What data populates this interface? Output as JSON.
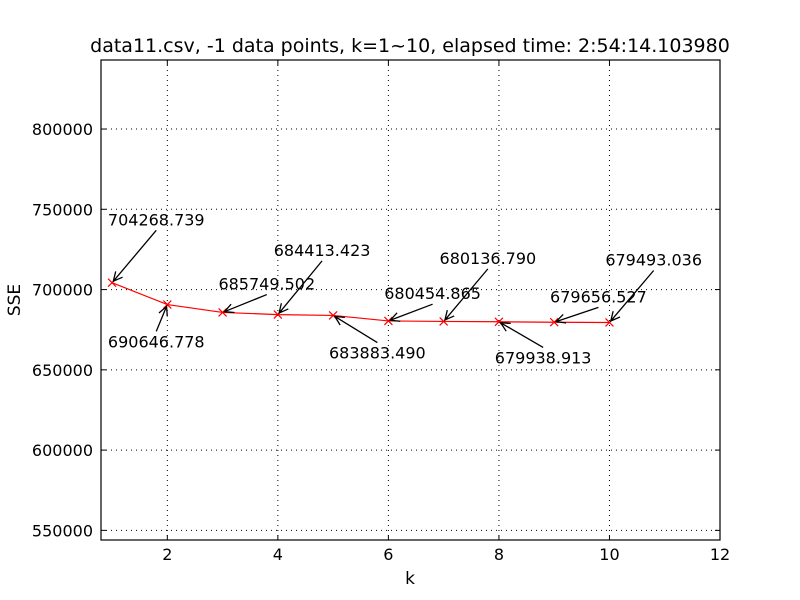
{
  "chart_data": {
    "type": "line",
    "title": "data11.csv, -1 data points, k=1~10, elapsed time: 2:54:14.103980",
    "xlabel": "k",
    "ylabel": "SSE",
    "xlim": [
      0.8,
      12
    ],
    "ylim": [
      544000,
      843000
    ],
    "xticks": [
      2,
      4,
      6,
      8,
      10,
      12
    ],
    "yticks": [
      550000,
      600000,
      650000,
      700000,
      750000,
      800000
    ],
    "xtick_labels": [
      "2",
      "4",
      "6",
      "8",
      "10",
      "12"
    ],
    "ytick_labels": [
      "550000",
      "600000",
      "650000",
      "700000",
      "750000",
      "800000"
    ],
    "grid": true,
    "marker": "x",
    "color": "#ff0000",
    "series": [
      {
        "x": [
          1,
          2,
          3,
          4,
          5,
          6,
          7,
          8,
          9,
          10
        ],
        "values": [
          704268.739,
          690646.778,
          685749.502,
          684413.423,
          683883.49,
          680454.865,
          680136.79,
          679938.913,
          679656.527,
          679493.036
        ]
      }
    ],
    "annotations": [
      {
        "x": 1,
        "y": 704268.739,
        "text": "704268.739",
        "tx": 1.8,
        "ty": 740000
      },
      {
        "x": 2,
        "y": 690646.778,
        "text": "690646.778",
        "tx": 1.8,
        "ty": 664000
      },
      {
        "x": 3,
        "y": 685749.502,
        "text": "685749.502",
        "tx": 3.8,
        "ty": 700000
      },
      {
        "x": 4,
        "y": 684413.423,
        "text": "684413.423",
        "tx": 4.8,
        "ty": 721000
      },
      {
        "x": 5,
        "y": 683883.49,
        "text": "683883.490",
        "tx": 5.8,
        "ty": 657000
      },
      {
        "x": 6,
        "y": 680454.865,
        "text": "680454.865",
        "tx": 6.8,
        "ty": 694000
      },
      {
        "x": 7,
        "y": 680136.79,
        "text": "680136.790",
        "tx": 7.8,
        "ty": 716000
      },
      {
        "x": 8,
        "y": 679938.913,
        "text": "679938.913",
        "tx": 8.8,
        "ty": 654000
      },
      {
        "x": 9,
        "y": 679656.527,
        "text": "679656.527",
        "tx": 9.8,
        "ty": 692000
      },
      {
        "x": 10,
        "y": 679493.036,
        "text": "679493.036",
        "tx": 10.8,
        "ty": 715000
      }
    ]
  }
}
